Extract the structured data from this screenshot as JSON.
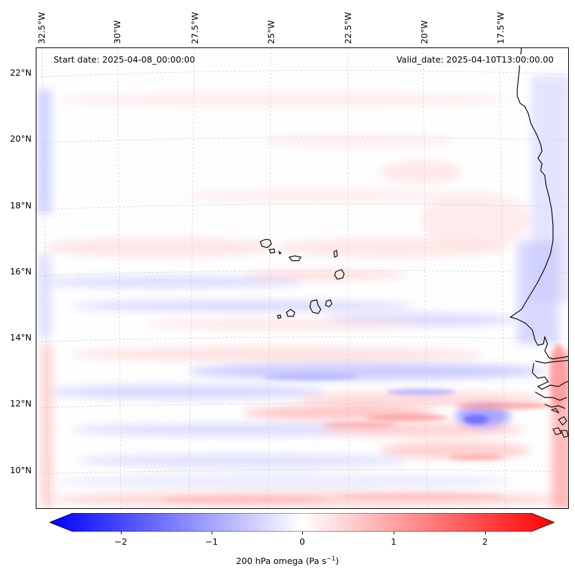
{
  "map": {
    "start_date": "Start date: 2025-04-08_00:00:00",
    "valid_date": "Valid_date: 2025-04-10T13:00:00.00",
    "lon_labels": [
      "32.5°W",
      "30°W",
      "27.5°W",
      "25°W",
      "22.5°W",
      "20°W",
      "17.5°W"
    ],
    "lat_labels": [
      "22°N",
      "20°N",
      "18°N",
      "16°N",
      "14°N",
      "12°N",
      "10°N"
    ],
    "variable": "200 hPa omega",
    "units": "Pa s",
    "units_exponent": "−1"
  },
  "colorbar": {
    "ticks": [
      "−2",
      "−1",
      "0",
      "1",
      "2"
    ],
    "tick_values": [
      -2,
      -1,
      0,
      1,
      2
    ],
    "range": [
      -2.5,
      2.5
    ],
    "cmap": "bwr",
    "colors": {
      "neg": "#0000ff",
      "mid": "#ffffff",
      "pos": "#ff0000"
    }
  }
}
